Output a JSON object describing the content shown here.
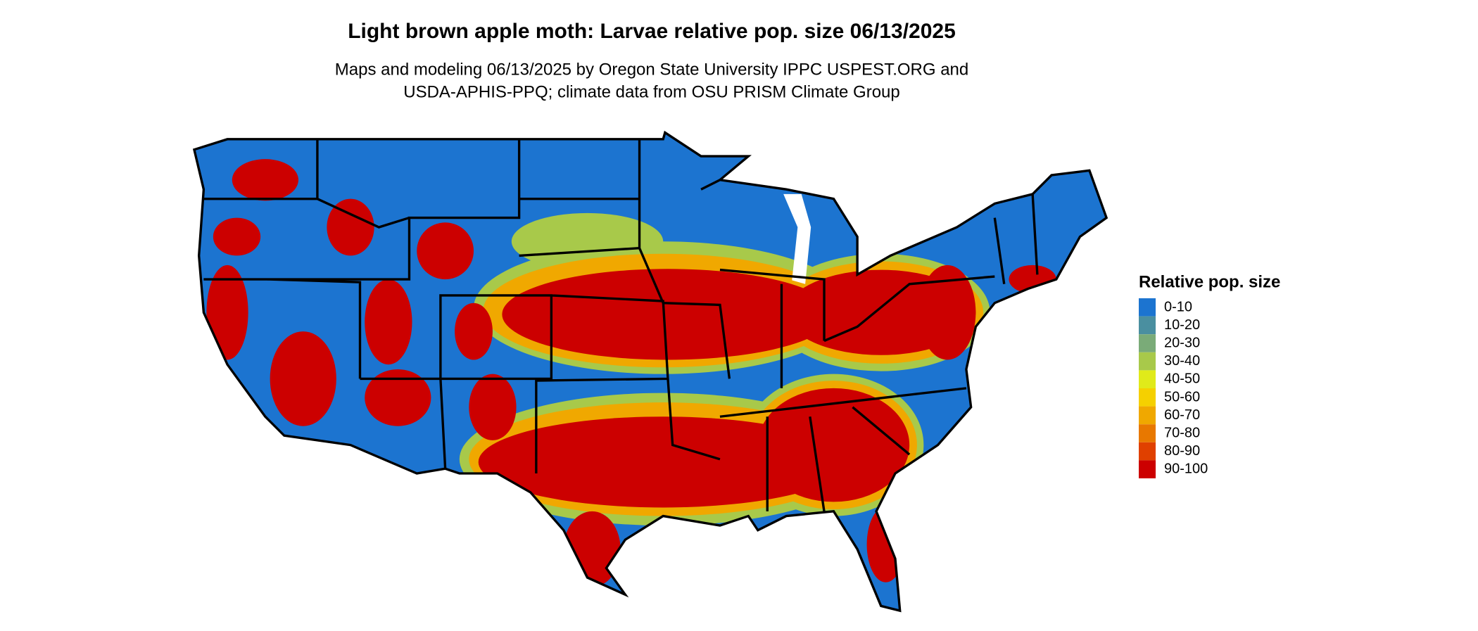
{
  "title": "Light brown apple moth: Larvae relative pop. size 06/13/2025",
  "subtitle": [
    "Maps and modeling 06/13/2025 by Oregon State University IPPC USPEST.ORG and",
    "USDA-APHIS-PPQ; climate data from OSU PRISM Climate Group"
  ],
  "legend": {
    "title": "Relative pop. size",
    "items": [
      {
        "label": "0-10",
        "color": "#1c74d0"
      },
      {
        "label": "10-20",
        "color": "#4a8fa0"
      },
      {
        "label": "20-30",
        "color": "#7aab78"
      },
      {
        "label": "30-40",
        "color": "#a8c94a"
      },
      {
        "label": "40-50",
        "color": "#e0ea1a"
      },
      {
        "label": "50-60",
        "color": "#f5d000"
      },
      {
        "label": "60-70",
        "color": "#f0a800"
      },
      {
        "label": "70-80",
        "color": "#e87800"
      },
      {
        "label": "80-90",
        "color": "#e04000"
      },
      {
        "label": "90-100",
        "color": "#cc0000"
      }
    ]
  }
}
